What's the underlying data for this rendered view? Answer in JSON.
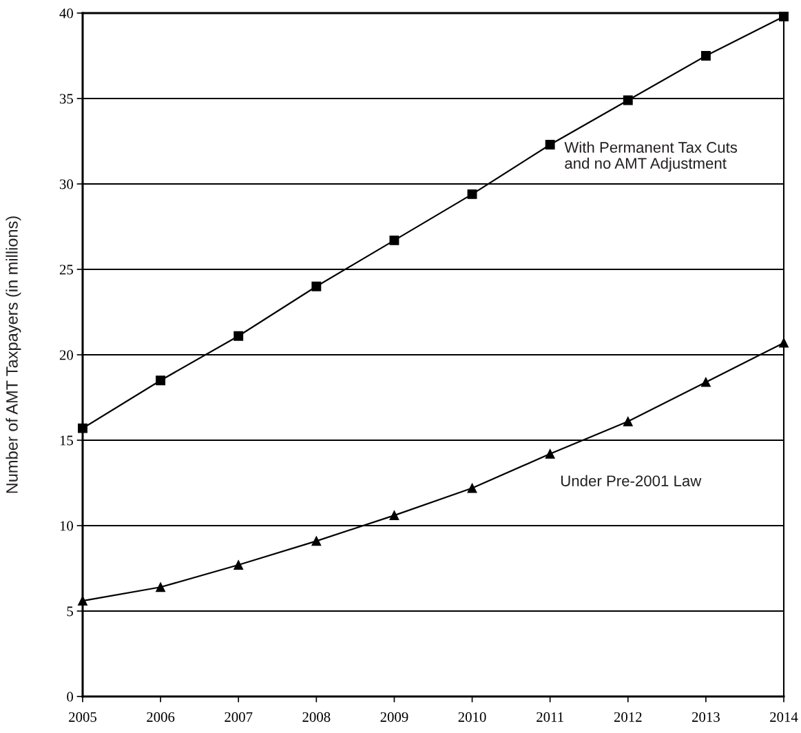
{
  "chart_data": {
    "type": "line",
    "ylabel": "Number of AMT Taxpayers (in millions)",
    "x": [
      2005,
      2006,
      2007,
      2008,
      2009,
      2010,
      2011,
      2012,
      2013,
      2014
    ],
    "xlim": [
      2005,
      2014
    ],
    "xticks": [
      2005,
      2006,
      2007,
      2008,
      2009,
      2010,
      2011,
      2012,
      2013,
      2014
    ],
    "ylim": [
      0,
      40
    ],
    "yticks": [
      0,
      5,
      10,
      15,
      20,
      25,
      30,
      35,
      40
    ],
    "grid": "y",
    "legend": false,
    "line_style": "solid",
    "series": [
      {
        "name": "With Permanent Tax Cuts\nand no AMT Adjustment",
        "color": "#000000",
        "marker": "square",
        "values": [
          15.7,
          18.5,
          21.1,
          24.0,
          26.7,
          29.4,
          32.3,
          34.9,
          37.5,
          39.8
        ]
      },
      {
        "name": "Under Pre-2001 Law",
        "color": "#000000",
        "marker": "triangle",
        "values": [
          5.6,
          6.4,
          7.7,
          9.1,
          10.6,
          12.2,
          14.2,
          16.1,
          18.4,
          20.7
        ]
      }
    ]
  }
}
